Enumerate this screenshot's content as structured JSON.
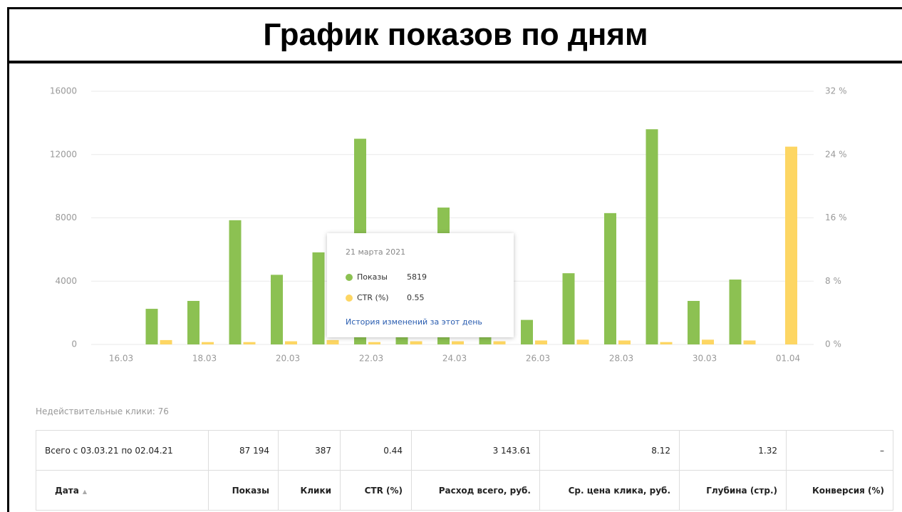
{
  "header": {
    "title": "График показов по дням"
  },
  "chart_data": {
    "type": "bar",
    "categories": [
      "16.03",
      null,
      "18.03",
      null,
      "20.03",
      null,
      "22.03",
      null,
      "24.03",
      null,
      "26.03",
      null,
      "28.03",
      null,
      "30.03",
      null,
      "01.04"
    ],
    "series": [
      {
        "name": "Показы",
        "color": "#8cc152",
        "values": [
          0,
          2250,
          2750,
          7850,
          4400,
          5819,
          13000,
          3400,
          8650,
          3100,
          1550,
          4500,
          8300,
          13600,
          2750,
          4100,
          0
        ]
      },
      {
        "name": "CTR (%)",
        "color": "#fdd663",
        "axis": "y2",
        "values": [
          0,
          0.55,
          0.3,
          0.3,
          0.4,
          0.55,
          0.3,
          0.4,
          0.4,
          0.4,
          0.5,
          0.6,
          0.5,
          0.3,
          0.6,
          0.5,
          25
        ]
      }
    ],
    "ylim": [
      0,
      16000
    ],
    "yticks": [
      0,
      4000,
      8000,
      12000,
      16000
    ],
    "y2lim": [
      0,
      32
    ],
    "y2ticks": [
      {
        "value": 0,
        "label": "0 %"
      },
      {
        "value": 8,
        "label": "8 %"
      },
      {
        "value": 16,
        "label": "16 %"
      },
      {
        "value": 24,
        "label": "24 %"
      },
      {
        "value": 32,
        "label": "32 %"
      }
    ],
    "grid": true
  },
  "tooltip": {
    "title": "21 марта 2021",
    "link": "История изменений за этот день"
  },
  "invalid_clicks": "Недействительные клики: 76",
  "table": {
    "summary": [
      "Всего с 03.03.21 по 02.04.21",
      "87 194",
      "387",
      "0.44",
      "3 143.61",
      "8.12",
      "1.32",
      "–"
    ],
    "columns": [
      "Дата",
      "Показы",
      "Клики",
      "CTR (%)",
      "Расход всего, руб.",
      "Ср. цена клика, руб.",
      "Глубина (стр.)",
      "Конверсия (%)"
    ]
  }
}
